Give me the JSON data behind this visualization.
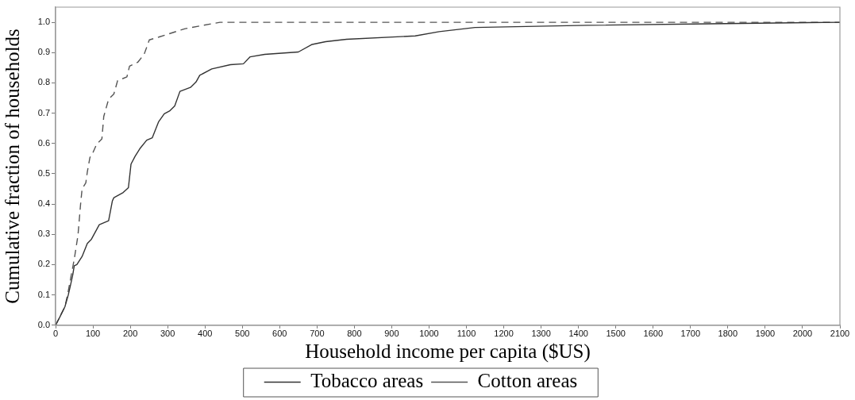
{
  "chart_data": {
    "type": "line",
    "xlabel": "Household income per capita ($US)",
    "ylabel": "Cumulative fraction of households",
    "xlim": [
      0,
      2100
    ],
    "xticks": [
      0,
      100,
      200,
      300,
      400,
      500,
      600,
      700,
      800,
      900,
      1000,
      1100,
      1200,
      1300,
      1400,
      1500,
      1600,
      1700,
      1800,
      1900,
      2000,
      2100
    ],
    "ylim": [
      0,
      1.05
    ],
    "yticks": [
      {
        "value": 0,
        "label": "0.0"
      },
      0.1,
      0.2,
      0.3,
      0.4,
      0.5,
      0.6,
      0.7,
      0.8,
      0.9,
      {
        "value": 1,
        "label": "1.0"
      }
    ],
    "grid": false,
    "legend": "bottom",
    "marker": "none",
    "series": [
      {
        "name": "Tobacco areas",
        "color": "#333333",
        "line_style": "solid",
        "x": [
          0,
          11,
          25,
          34,
          39,
          46,
          50,
          57,
          71,
          85,
          96,
          117,
          142,
          152,
          156,
          181,
          195,
          202,
          213,
          227,
          244,
          259,
          276,
          291,
          305,
          319,
          333,
          361,
          376,
          386,
          418,
          468,
          503,
          521,
          560,
          650,
          687,
          723,
          779,
          963,
          1027,
          1123,
          1424,
          1750,
          2100
        ],
        "values": [
          0,
          0.026,
          0.061,
          0.1,
          0.127,
          0.166,
          0.196,
          0.2,
          0.227,
          0.27,
          0.284,
          0.332,
          0.345,
          0.41,
          0.421,
          0.438,
          0.454,
          0.532,
          0.558,
          0.585,
          0.611,
          0.619,
          0.672,
          0.698,
          0.707,
          0.724,
          0.772,
          0.785,
          0.803,
          0.825,
          0.846,
          0.86,
          0.863,
          0.886,
          0.894,
          0.902,
          0.927,
          0.936,
          0.944,
          0.955,
          0.969,
          0.983,
          0.99,
          0.995,
          1
        ]
      },
      {
        "name": "Cotton areas",
        "color": "#555555",
        "line_style": "dashed",
        "x": [
          0,
          25,
          32,
          50,
          60,
          67,
          71,
          81,
          85,
          92,
          99,
          110,
          124,
          129,
          142,
          156,
          166,
          191,
          198,
          220,
          237,
          251,
          276,
          347,
          418,
          440,
          2100
        ],
        "values": [
          0,
          0.061,
          0.1,
          0.218,
          0.297,
          0.4,
          0.45,
          0.47,
          0.506,
          0.554,
          0.567,
          0.598,
          0.615,
          0.689,
          0.746,
          0.763,
          0.807,
          0.82,
          0.855,
          0.868,
          0.894,
          0.942,
          0.951,
          0.979,
          0.995,
          1,
          1
        ]
      }
    ]
  }
}
